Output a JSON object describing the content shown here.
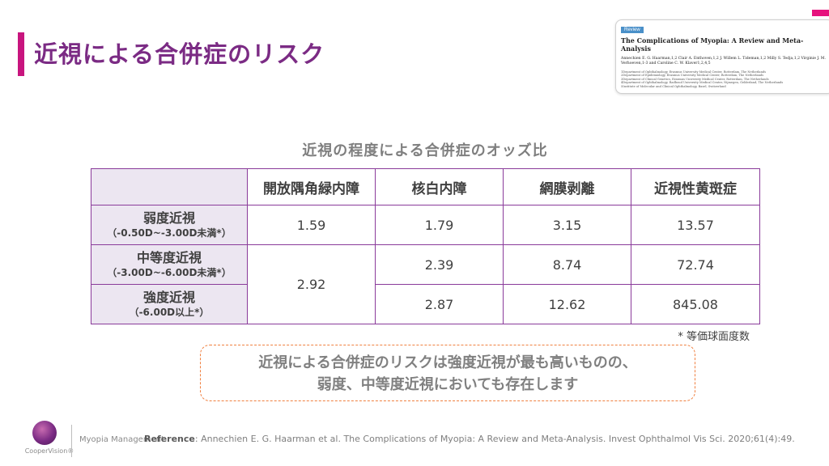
{
  "slide": {
    "title": "近視による合併症のリスク"
  },
  "paper": {
    "tag": "Review",
    "title": "The Complications of Myopia: A Review and Meta-Analysis",
    "authors": "Annechien E. G. Haarman,1,2 Clair A. Enthoven,1,2 J. Willem L. Tideman,1,2 Milly S. Tedja,1,2 Virginie J. M. Verhoeven,1-3 and Caroline C. W. Klaver1,2,4,5",
    "affiliations": [
      "1Department of Ophthalmology, Erasmus University Medical Center, Rotterdam, The Netherlands",
      "2Department of Epidemiology, Erasmus University Medical Center, Rotterdam, The Netherlands",
      "3Department of Clinical Genetics, Erasmus University Medical Center, Rotterdam, The Netherlands",
      "4Department of Ophthalmology, Radboud University Medical Center, Nijmegen, Gelderland, The Netherlands",
      "5Institute of Molecular and Clinical Ophthalmology, Basel, Switzerland"
    ]
  },
  "table": {
    "caption": "近視の程度による合併症のオッズ比",
    "columns": [
      "開放隅角緑内障",
      "核白内障",
      "網膜剥離",
      "近視性黄斑症"
    ],
    "rows": [
      {
        "label": "弱度近視",
        "range": "（-0.50D~-3.00D未満*）",
        "values": [
          "1.59",
          "1.79",
          "3.15",
          "13.57"
        ]
      },
      {
        "label": "中等度近視",
        "range": "（-3.00D~-6.00D未満*）",
        "values": [
          "2.92",
          "2.39",
          "8.74",
          "72.74"
        ]
      },
      {
        "label": "強度近視",
        "range": "（-6.00D以上*）",
        "values": [
          "",
          "2.87",
          "12.62",
          "845.08"
        ]
      }
    ],
    "footnote": "* 等価球面度数"
  },
  "callout": {
    "line1": "近視による合併症のリスクは強度近視が最も高いものの、",
    "line2": "弱度、中等度近視においても存在します"
  },
  "footer": {
    "brand": "CooperVision®",
    "product": "Myopia Management",
    "ref_label": "Reference",
    "ref_text": ": Annechien E. G. Haarman et al. The Complications of Myopia: A Review and Meta-Analysis. Invest Ophthalmol Vis Sci. 2020;61(4):49."
  },
  "colors": {
    "accent": "#c8157e",
    "title": "#7b2b84",
    "table_border": "#8a3b9a",
    "header_fill": "#ece6f1",
    "callout_border": "#f08040"
  }
}
